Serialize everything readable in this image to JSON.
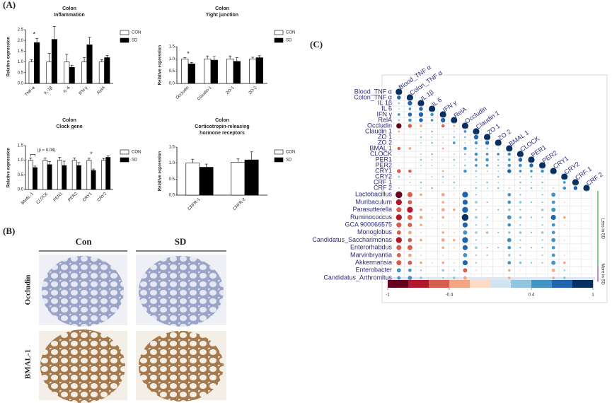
{
  "panels": {
    "a": "(A)",
    "b": "(B)",
    "c": "(C)"
  },
  "images": {
    "columns": [
      "Con",
      "SD"
    ],
    "rows": [
      "Occludin",
      "BMAL-1"
    ]
  },
  "chart_data": [
    {
      "type": "bar",
      "title": "Colon",
      "subtitle": [
        "Inflammation"
      ],
      "ylabel": "Relative expression",
      "categories": [
        "TNF-α",
        "IL-1β",
        "IL-6",
        "IFN-γ",
        "RelA"
      ],
      "series": [
        {
          "name": "CON",
          "color": "#ffffff",
          "values": [
            1.0,
            1.0,
            1.0,
            1.0,
            1.0
          ],
          "errors": [
            0.1,
            0.4,
            0.35,
            0.2,
            0.1
          ]
        },
        {
          "name": "SD",
          "color": "#000000",
          "values": [
            1.9,
            2.05,
            0.75,
            1.8,
            1.2
          ],
          "errors": [
            0.2,
            0.6,
            0.1,
            0.35,
            0.1
          ]
        }
      ],
      "ylim": [
        0,
        2.5
      ],
      "yticks": [
        {
          "value": 0,
          "label": "0.0"
        },
        {
          "value": 0.5,
          "label": "0.5"
        },
        {
          "value": 1,
          "label": "1.0"
        },
        {
          "value": 1.5,
          "label": "1.5"
        },
        {
          "value": 2,
          "label": "2.0"
        },
        {
          "value": 2.5,
          "label": "2.5"
        }
      ],
      "annotations": [
        {
          "text": "*",
          "at": "TNF-α"
        }
      ]
    },
    {
      "type": "bar",
      "title": "Colon",
      "subtitle": [
        "Tight junction"
      ],
      "ylabel": "Relative expression",
      "categories": [
        "Occludin",
        "Claudin-1",
        "ZO-1",
        "ZO-2"
      ],
      "series": [
        {
          "name": "CON",
          "color": "#ffffff",
          "values": [
            1.0,
            1.0,
            1.0,
            1.0
          ],
          "errors": [
            0.05,
            0.12,
            0.12,
            0.07
          ]
        },
        {
          "name": "SD",
          "color": "#000000",
          "values": [
            0.8,
            0.95,
            0.9,
            1.05
          ],
          "errors": [
            0.05,
            0.15,
            0.15,
            0.08
          ]
        }
      ],
      "ylim": [
        0,
        1.5
      ],
      "yticks": [
        {
          "value": 0,
          "label": "0.0"
        },
        {
          "value": 0.5,
          "label": "0.5"
        },
        {
          "value": 1,
          "label": "1.0"
        },
        {
          "value": 1.5,
          "label": "1.5"
        }
      ],
      "annotations": [
        {
          "text": "*",
          "at": "Occludin"
        }
      ]
    },
    {
      "type": "bar",
      "title": "Colon",
      "subtitle": [
        "Clock gene"
      ],
      "ylabel": "Relative expression",
      "categories": [
        "BMAL-1",
        "CLOCK",
        "PER1",
        "PER2",
        "CRY1",
        "CRY2"
      ],
      "series": [
        {
          "name": "CON",
          "color": "#ffffff",
          "values": [
            1.0,
            1.0,
            1.0,
            1.0,
            1.0,
            1.0
          ],
          "errors": [
            0.08,
            0.07,
            0.1,
            0.08,
            0.07,
            0.06
          ]
        },
        {
          "name": "SD",
          "color": "#000000",
          "values": [
            0.75,
            0.85,
            0.82,
            0.82,
            0.65,
            1.1
          ],
          "errors": [
            0.05,
            0.1,
            0.15,
            0.1,
            0.05,
            0.05
          ]
        }
      ],
      "ylim": [
        0,
        1.5
      ],
      "yticks": [
        {
          "value": 0,
          "label": "0.0"
        },
        {
          "value": 0.5,
          "label": "0.5"
        },
        {
          "value": 1,
          "label": "1.0"
        },
        {
          "value": 1.5,
          "label": "1.5"
        }
      ],
      "annotations": [
        {
          "text": "(p = 0.08)",
          "at": "BMAL-1",
          "bracket": true
        },
        {
          "text": "*",
          "at": "CRY1"
        }
      ]
    },
    {
      "type": "bar",
      "title": "Colon",
      "subtitle": [
        "Corticotropin-releasing",
        "hormone receptors"
      ],
      "ylabel": "Relative expression",
      "categories": [
        "CRFR-1",
        "CRFR-2"
      ],
      "series": [
        {
          "name": "CON",
          "color": "#ffffff",
          "values": [
            1.0,
            1.03
          ],
          "errors": [
            0.12,
            0.1
          ]
        },
        {
          "name": "SD",
          "color": "#000000",
          "values": [
            0.87,
            1.1
          ],
          "errors": [
            0.1,
            0.25
          ]
        }
      ],
      "ylim": [
        0,
        1.5
      ],
      "yticks": [
        {
          "value": 0,
          "label": "0.0"
        },
        {
          "value": 0.5,
          "label": "0.5"
        },
        {
          "value": 1,
          "label": "1.0"
        },
        {
          "value": 1.5,
          "label": "1.5"
        }
      ],
      "annotations": []
    },
    {
      "type": "correlogram",
      "columns": [
        "Blood_TNF α",
        "Colon_TNF α",
        "IL 1β",
        "IL 6",
        "IFN γ",
        "RelA",
        "Occludin",
        "Claudin 1",
        "ZO 1",
        "ZO 2",
        "BMAL 1",
        "CLOCK",
        "PER1",
        "PER2",
        "CRY1",
        "CRY2",
        "CRF 1",
        "CRF 2"
      ],
      "rows": [
        "Blood_TNF α",
        "Colon_TNF α",
        "IL 1β",
        "IL 6",
        "IFN γ",
        "RelA",
        "Occludin",
        "Claudin 1",
        "ZO 1",
        "ZO 2",
        "BMAL 1",
        "CLOCK",
        "PER1",
        "PER2",
        "CRY1",
        "CRY2",
        "CRF 1",
        "CRF 2",
        "Lactobacillus",
        "Muribaculum",
        "Parasutterella",
        "Ruminococcus",
        "GCA 900066575",
        "Monoglobus",
        "Candidatus_Saccharimonas",
        "Enterorhabdus",
        "Marvinbryantia",
        "Akkermansia",
        "Enterobacter",
        "Candidatus_Arthromitus"
      ],
      "values": [
        [
          1
        ],
        [
          0.6,
          1
        ],
        [
          0.3,
          0.7,
          1
        ],
        [
          0.2,
          0.4,
          0.6,
          1
        ],
        [
          0.4,
          0.6,
          0.7,
          0.5,
          1
        ],
        [
          0.3,
          0.5,
          0.6,
          0.4,
          0.7,
          1
        ],
        [
          -0.8,
          -0.6,
          -0.4,
          -0.2,
          -0.5,
          -0.3,
          1
        ],
        [
          -0.3,
          -0.2,
          0.2,
          0.3,
          0.1,
          0.2,
          0.4,
          1
        ],
        [
          -0.2,
          -0.1,
          0.3,
          0.2,
          0.2,
          0.3,
          0.3,
          0.7,
          1
        ],
        [
          -0.1,
          0.1,
          0.2,
          0.3,
          0.2,
          0.4,
          0.2,
          0.5,
          0.6,
          1
        ],
        [
          -0.5,
          -0.4,
          -0.2,
          0.1,
          -0.3,
          -0.1,
          0.5,
          0.3,
          0.3,
          0.2,
          1
        ],
        [
          -0.2,
          -0.1,
          0.2,
          0.3,
          0.1,
          0.2,
          0.3,
          0.5,
          0.4,
          0.4,
          0.5,
          1
        ],
        [
          -0.1,
          0.1,
          0.3,
          0.2,
          0.2,
          0.3,
          0.2,
          0.4,
          0.5,
          0.3,
          0.4,
          0.6,
          1
        ],
        [
          -0.2,
          0,
          0.2,
          0.2,
          0.1,
          0.2,
          0.3,
          0.4,
          0.4,
          0.3,
          0.5,
          0.5,
          0.6,
          1
        ],
        [
          -0.6,
          -0.5,
          -0.2,
          0,
          -0.3,
          -0.2,
          0.5,
          0.3,
          0.2,
          0.2,
          0.6,
          0.4,
          0.4,
          0.5,
          1
        ],
        [
          0.3,
          0.2,
          0.1,
          0.2,
          0.3,
          0.2,
          -0.2,
          0.2,
          0.1,
          0.3,
          0,
          0.2,
          0.3,
          0.2,
          0.1,
          1
        ],
        [
          0.1,
          0.2,
          0.3,
          0.1,
          0.2,
          0.3,
          0,
          0.2,
          0.3,
          0.2,
          0.1,
          0.3,
          0.2,
          0.3,
          0.1,
          0.4,
          1
        ],
        [
          0.2,
          0.1,
          0.2,
          0.3,
          0.1,
          0.2,
          -0.1,
          0.3,
          0.2,
          0.3,
          0.2,
          0.2,
          0.3,
          0.2,
          0.2,
          0.5,
          0.6,
          1
        ],
        [
          -0.8,
          -0.6,
          -0.3,
          -0.1,
          -0.4,
          -0.2,
          0.7,
          0.2,
          0.1,
          0.1,
          0.4,
          0.2,
          0.1,
          0.2,
          0.5,
          -0.1,
          0,
          0.1
        ],
        [
          -0.7,
          -0.5,
          -0.2,
          0,
          -0.3,
          -0.2,
          0.6,
          0.3,
          0.2,
          0.1,
          0.4,
          0.3,
          0.2,
          0.2,
          0.4,
          -0.2,
          0.1,
          0
        ],
        [
          -0.6,
          -0.7,
          -0.3,
          -0.2,
          -0.4,
          -0.3,
          0.7,
          0.2,
          0.1,
          0.2,
          0.3,
          0.2,
          0.1,
          0.3,
          0.5,
          -0.1,
          0,
          0.1
        ],
        [
          -0.7,
          -0.6,
          -0.4,
          -0.2,
          -0.3,
          -0.2,
          0.8,
          0.3,
          0.2,
          0.1,
          0.5,
          0.3,
          0.2,
          0.2,
          0.6,
          -0.3,
          0.1,
          0
        ],
        [
          -0.6,
          -0.5,
          -0.3,
          -0.1,
          -0.2,
          -0.1,
          0.6,
          0.2,
          0.2,
          0.1,
          0.4,
          0.2,
          0.1,
          0.2,
          0.4,
          -0.2,
          0,
          0.1
        ],
        [
          -0.5,
          -0.4,
          -0.2,
          0,
          -0.3,
          -0.2,
          0.5,
          0.3,
          0.3,
          0.2,
          0.3,
          0.3,
          0.2,
          0.3,
          0.4,
          -0.1,
          0.1,
          0
        ],
        [
          -0.7,
          -0.5,
          -0.3,
          -0.1,
          -0.4,
          -0.3,
          0.7,
          0.2,
          0.1,
          0.1,
          0.5,
          0.2,
          0.1,
          0.2,
          0.5,
          -0.2,
          0,
          0.1
        ],
        [
          -0.6,
          -0.6,
          -0.2,
          -0.1,
          -0.3,
          -0.2,
          0.6,
          0.3,
          0.2,
          0.2,
          0.4,
          0.2,
          0.2,
          0.2,
          0.4,
          -0.1,
          0.1,
          0
        ],
        [
          -0.5,
          -0.4,
          -0.2,
          0,
          -0.2,
          -0.1,
          0.5,
          0.2,
          0.2,
          0.1,
          0.3,
          0.2,
          0.1,
          0.2,
          0.4,
          -0.2,
          0,
          0.1
        ],
        [
          -0.6,
          -0.5,
          -0.3,
          -0.2,
          -0.3,
          -0.2,
          0.6,
          0.2,
          0.1,
          0.1,
          0.4,
          0.3,
          0.2,
          0.2,
          0.5,
          -0.3,
          0,
          0
        ],
        [
          0.5,
          0.4,
          0.2,
          0.1,
          0.3,
          0.2,
          -0.5,
          -0.2,
          -0.1,
          0,
          -0.3,
          -0.1,
          0,
          -0.1,
          -0.4,
          0.2,
          0,
          0.1
        ],
        [
          0.4,
          0.5,
          0.3,
          0.1,
          0.2,
          0.3,
          -0.4,
          -0.1,
          -0.2,
          0,
          -0.3,
          -0.2,
          -0.1,
          0,
          -0.3,
          0.3,
          0.1,
          0
        ]
      ],
      "groups": [
        {
          "label": "Less in SD",
          "color": "#5cb85c",
          "size": 10
        },
        {
          "label": "More in SD",
          "color": "#b05cc0",
          "size": 2
        }
      ],
      "colorbar": {
        "lim": [
          -1,
          1
        ],
        "ticks": [
          -1,
          -0.4,
          0.4,
          1
        ],
        "colors": [
          "#67001f",
          "#b2182b",
          "#d6604d",
          "#f4a582",
          "#fddbc7",
          "#d1e5f0",
          "#92c5de",
          "#4393c3",
          "#2166ac",
          "#053061"
        ]
      },
      "label_color": "#2e2a7a"
    }
  ]
}
